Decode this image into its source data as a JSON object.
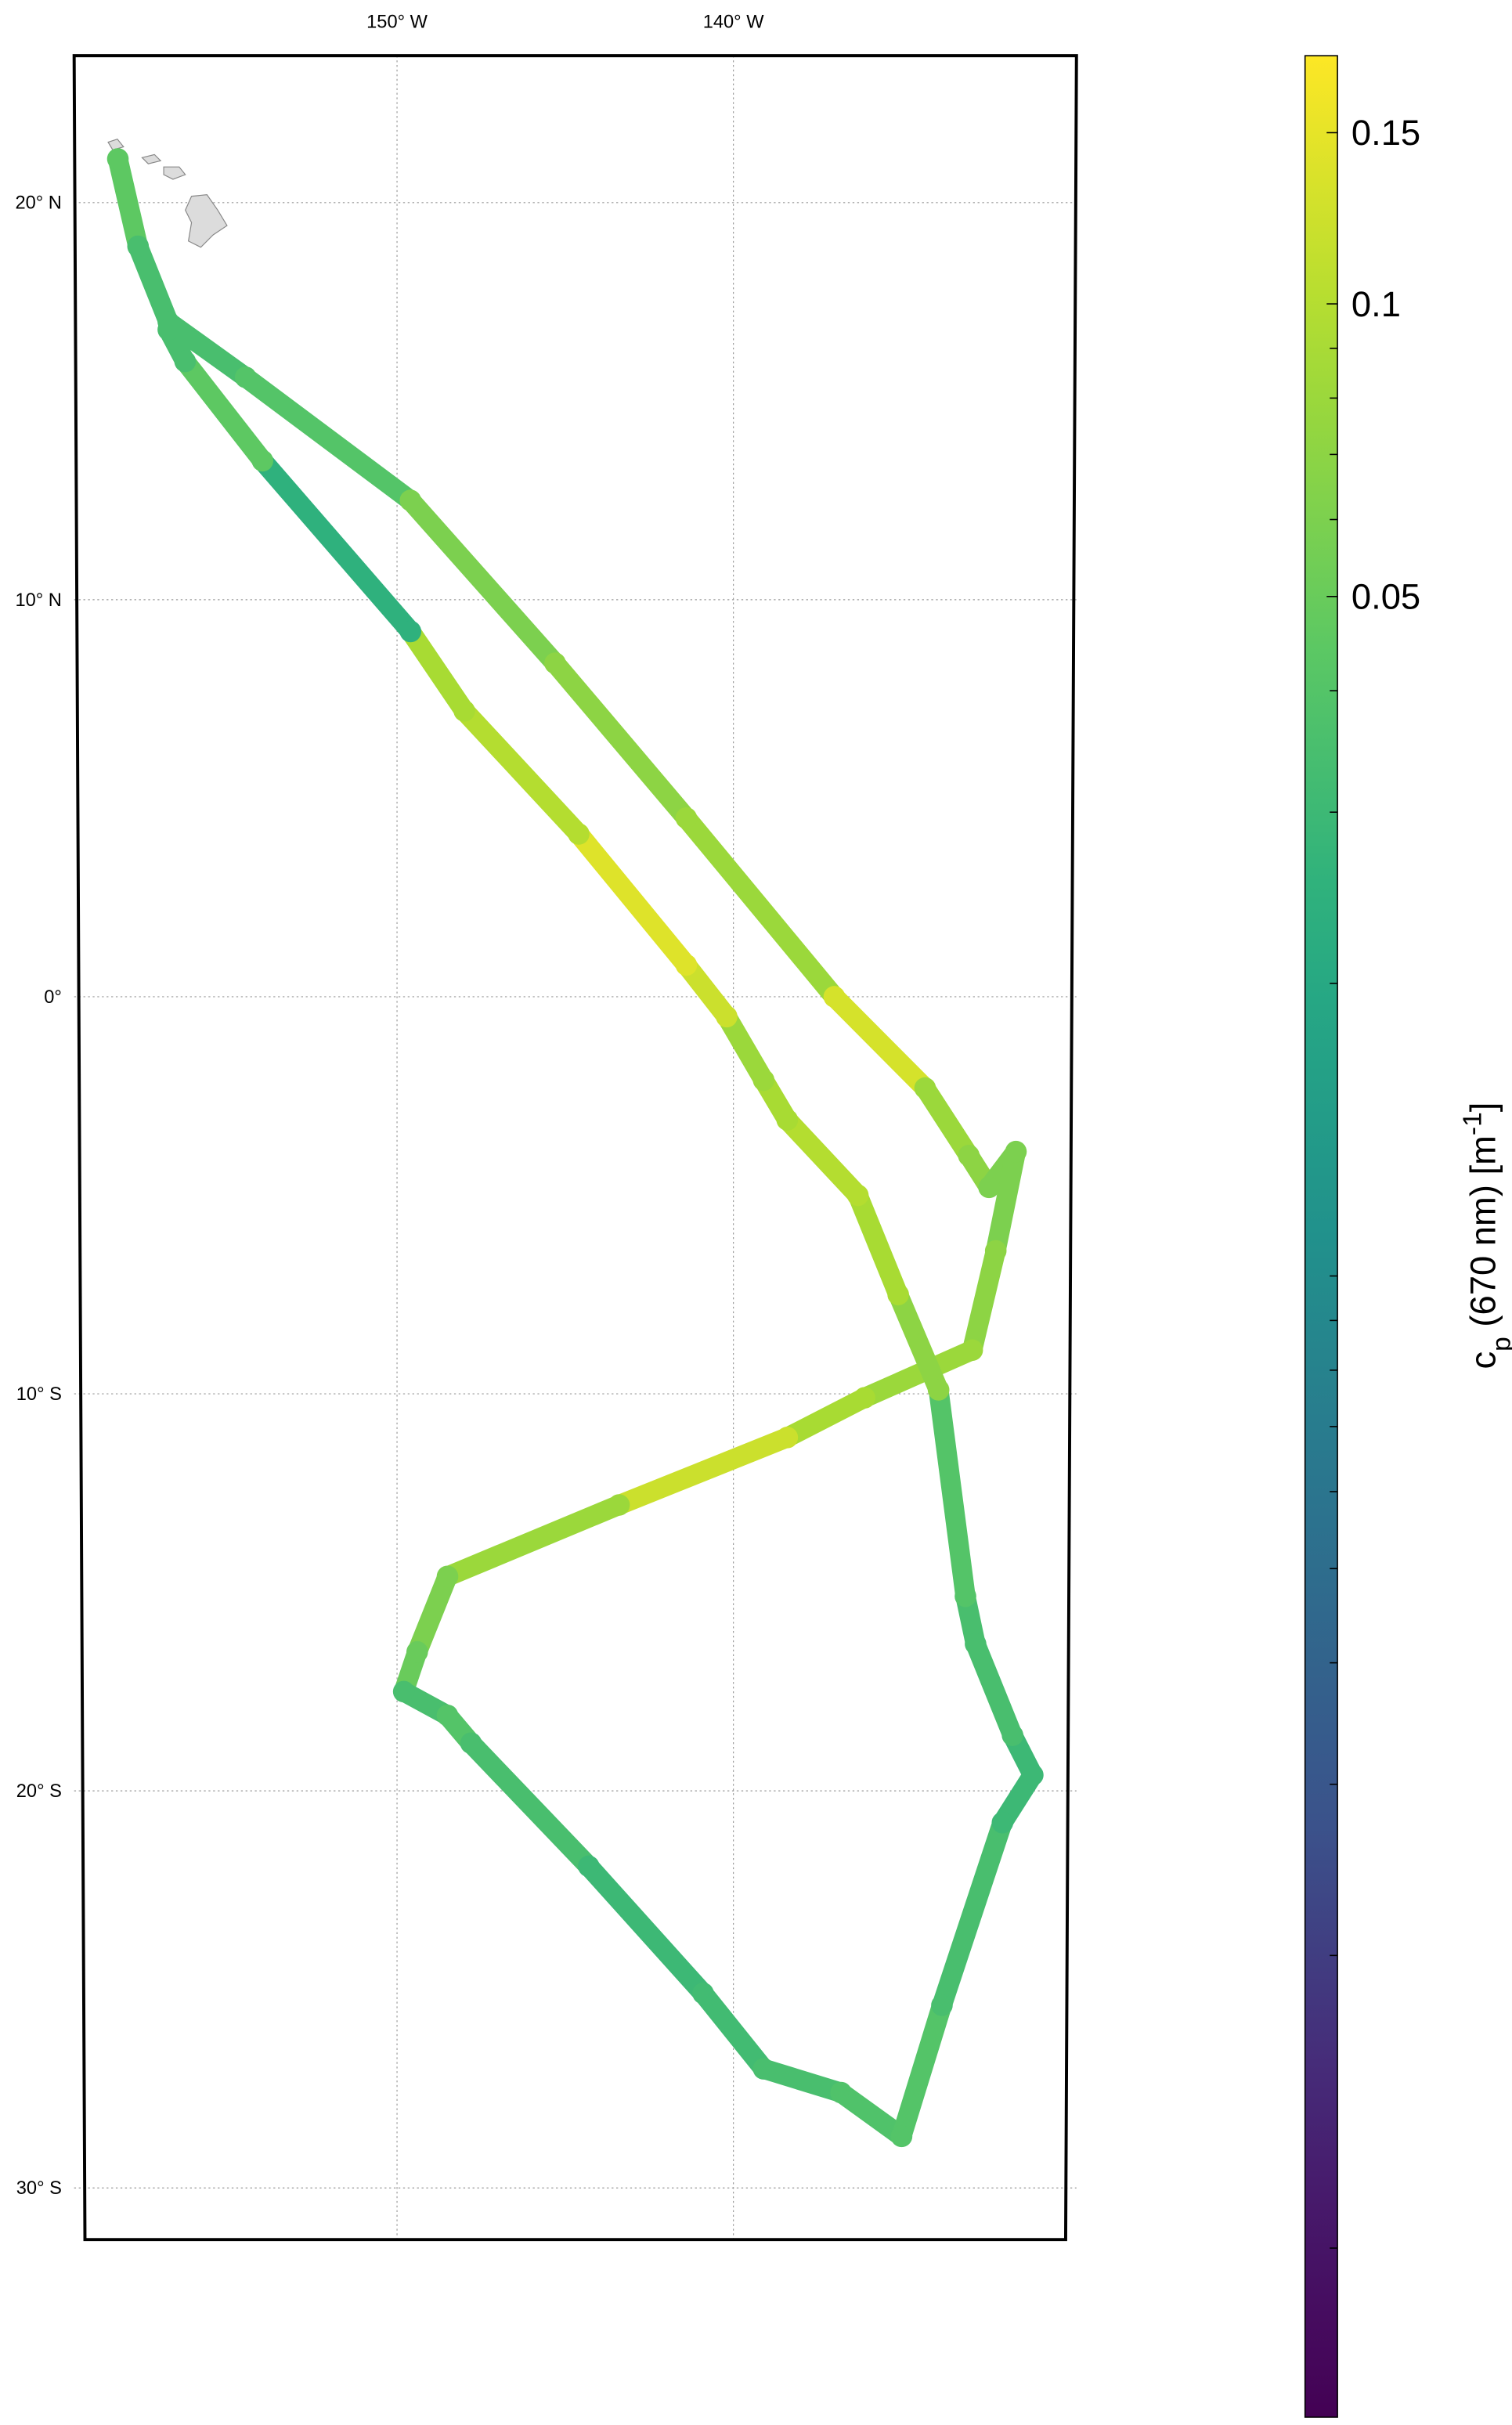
{
  "map": {
    "lon_ticks": [
      {
        "value": -150,
        "label": "150° W"
      },
      {
        "value": -140,
        "label": "140° W"
      }
    ],
    "lat_ticks": [
      {
        "value": 20,
        "label": "20° N"
      },
      {
        "value": 10,
        "label": "10° N"
      },
      {
        "value": 0,
        "label": "0°"
      },
      {
        "value": -10,
        "label": "10° S"
      },
      {
        "value": -20,
        "label": "20° S"
      },
      {
        "value": -30,
        "label": "30° S"
      }
    ],
    "lonlim": [
      -159.6,
      -129.8
    ],
    "latlim": [
      -31.3,
      23.7
    ],
    "track": {
      "lon": [
        -158.3,
        -157.7,
        -156.8,
        -154.5,
        -149.6,
        -145.3,
        -141.4,
        -137.0,
        -134.3,
        -133.0,
        -132.4,
        -131.6,
        -132.2,
        -132.9,
        -136.1,
        -138.4,
        -143.4,
        -148.5,
        -149.4,
        -149.8,
        -148.5,
        -147.8,
        -144.3,
        -140.9,
        -139.1,
        -136.8,
        -135.0,
        -133.8,
        -132.0,
        -131.1,
        -131.7,
        -132.8,
        -133.1,
        -133.9,
        -135.1,
        -136.3,
        -138.4,
        -139.1,
        -140.2,
        -141.4,
        -144.6,
        -148.0,
        -149.6,
        -154.0,
        -156.3,
        -156.8
      ],
      "lat": [
        21.1,
        18.9,
        17.0,
        15.6,
        12.5,
        8.4,
        4.5,
        0.0,
        -2.3,
        -4.0,
        -4.8,
        -3.9,
        -6.4,
        -8.9,
        -10.1,
        -11.1,
        -12.8,
        -14.6,
        -16.5,
        -17.5,
        -18.1,
        -18.8,
        -21.9,
        -25.1,
        -27.0,
        -27.6,
        -28.7,
        -25.4,
        -20.8,
        -19.6,
        -18.6,
        -16.3,
        -15.1,
        -9.9,
        -7.5,
        -5.0,
        -3.1,
        -2.1,
        -0.5,
        0.8,
        4.1,
        7.2,
        9.2,
        13.5,
        16.0,
        16.8
      ],
      "cp": [
        0.045,
        0.035,
        0.035,
        0.04,
        0.06,
        0.07,
        0.08,
        0.13,
        0.08,
        0.07,
        0.06,
        0.06,
        0.07,
        0.08,
        0.09,
        0.12,
        0.08,
        0.06,
        0.05,
        0.035,
        0.04,
        0.035,
        0.03,
        0.032,
        0.035,
        0.038,
        0.04,
        0.035,
        0.03,
        0.03,
        0.035,
        0.035,
        0.04,
        0.07,
        0.09,
        0.1,
        0.09,
        0.08,
        0.12,
        0.14,
        0.1,
        0.09,
        0.025,
        0.045,
        0.035,
        0.035
      ]
    }
  },
  "colorbar": {
    "log_scale": true,
    "lim": [
      0.00067,
      0.18
    ],
    "ticks": [
      {
        "value": 0.15,
        "label": "0.15"
      },
      {
        "value": 0.1,
        "label": "0.1"
      },
      {
        "value": 0.05,
        "label": "0.05"
      }
    ],
    "minor_ticks": [
      0.09,
      0.08,
      0.07,
      0.06,
      0.04,
      0.03,
      0.02,
      0.01,
      0.009,
      0.008,
      0.007,
      0.006,
      0.005,
      0.004,
      0.003,
      0.002,
      0.001
    ],
    "label": {
      "base": "c",
      "sub": "p",
      "mid": " (670 nm) [m",
      "sup": "-1",
      "end": "]"
    }
  }
}
